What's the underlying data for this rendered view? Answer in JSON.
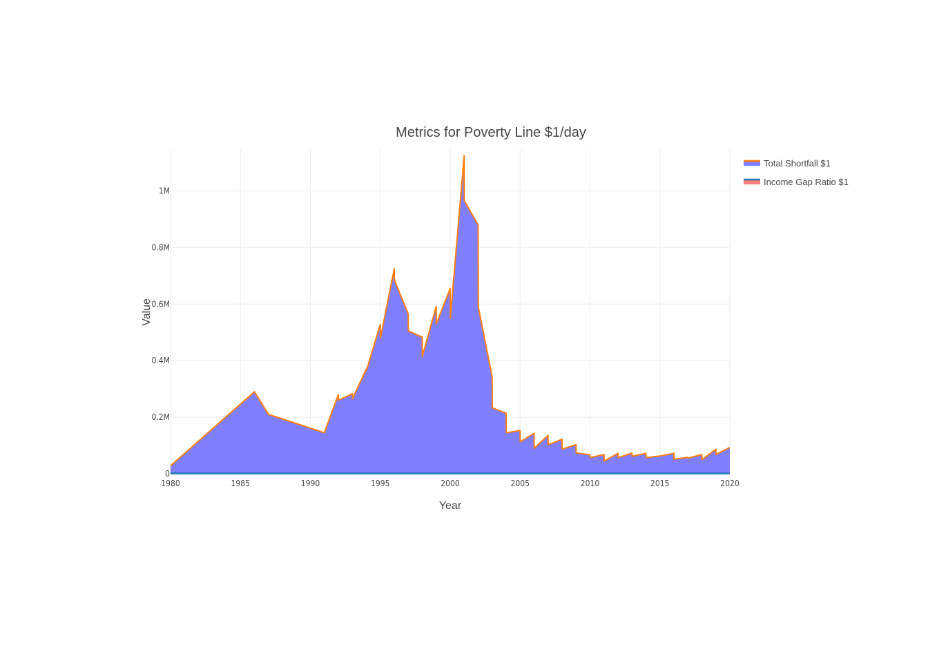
{
  "chart_data": {
    "type": "area",
    "title": "Metrics for Poverty Line $1/day",
    "xlabel": "Year",
    "ylabel": "Value",
    "xlim": [
      1980,
      2020
    ],
    "ylim": [
      0,
      1150000
    ],
    "x_ticks": [
      1980,
      1985,
      1990,
      1995,
      2000,
      2005,
      2010,
      2015,
      2020
    ],
    "y_ticks": [
      0,
      200000,
      400000,
      600000,
      800000,
      1000000
    ],
    "y_tick_labels": [
      "0",
      "0.2M",
      "0.4M",
      "0.6M",
      "0.8M",
      "1M"
    ],
    "grid": true,
    "legend_position": "top-right",
    "fill_color": "#7f7fff",
    "series": [
      {
        "name": "Total Shortfall $1",
        "color": "#ff7f0e",
        "fill": "tozeroy",
        "points": [
          [
            1980,
            28000
          ],
          [
            1986,
            290000
          ],
          [
            1987,
            210000
          ],
          [
            1991,
            145000
          ],
          [
            1992,
            280000
          ],
          [
            1992.01,
            260000
          ],
          [
            1993,
            283000
          ],
          [
            1993.01,
            265000
          ],
          [
            1994,
            370000
          ],
          [
            1994.01,
            365000
          ],
          [
            1995,
            528000
          ],
          [
            1995.01,
            480000
          ],
          [
            1996,
            725000
          ],
          [
            1996.01,
            685000
          ],
          [
            1997,
            565000
          ],
          [
            1997.01,
            505000
          ],
          [
            1998,
            483000
          ],
          [
            1998.01,
            415000
          ],
          [
            1999,
            592000
          ],
          [
            1999.01,
            530000
          ],
          [
            2000,
            655000
          ],
          [
            2000.01,
            550000
          ],
          [
            2001,
            1125000
          ],
          [
            2001.01,
            965000
          ],
          [
            2002,
            880000
          ],
          [
            2002.01,
            590000
          ],
          [
            2003,
            343000
          ],
          [
            2003.01,
            233000
          ],
          [
            2004,
            214000
          ],
          [
            2004.01,
            145000
          ],
          [
            2005,
            153000
          ],
          [
            2005.01,
            113000
          ],
          [
            2006,
            143000
          ],
          [
            2006.01,
            90000
          ],
          [
            2007,
            136000
          ],
          [
            2007.01,
            103000
          ],
          [
            2008,
            122000
          ],
          [
            2008.01,
            87000
          ],
          [
            2009,
            103000
          ],
          [
            2009.01,
            74000
          ],
          [
            2010,
            67000
          ],
          [
            2010.01,
            57000
          ],
          [
            2011,
            68000
          ],
          [
            2011.01,
            45000
          ],
          [
            2012,
            72000
          ],
          [
            2012.01,
            57000
          ],
          [
            2013,
            73000
          ],
          [
            2013.01,
            62000
          ],
          [
            2014,
            72000
          ],
          [
            2014.01,
            57000
          ],
          [
            2015,
            63000
          ],
          [
            2016,
            72000
          ],
          [
            2016.01,
            52000
          ],
          [
            2017,
            58000
          ],
          [
            2017.01,
            55000
          ],
          [
            2018,
            68000
          ],
          [
            2018.01,
            50000
          ],
          [
            2019,
            87000
          ],
          [
            2019.01,
            68000
          ],
          [
            2020,
            93000
          ]
        ]
      },
      {
        "name": "Income Gap Ratio $1",
        "color": "#1f77b4",
        "legend_fill": "#ff7f7f",
        "fill": "tozeroy",
        "points": [
          [
            1980,
            0.35
          ],
          [
            2020,
            0.3
          ]
        ]
      }
    ]
  }
}
